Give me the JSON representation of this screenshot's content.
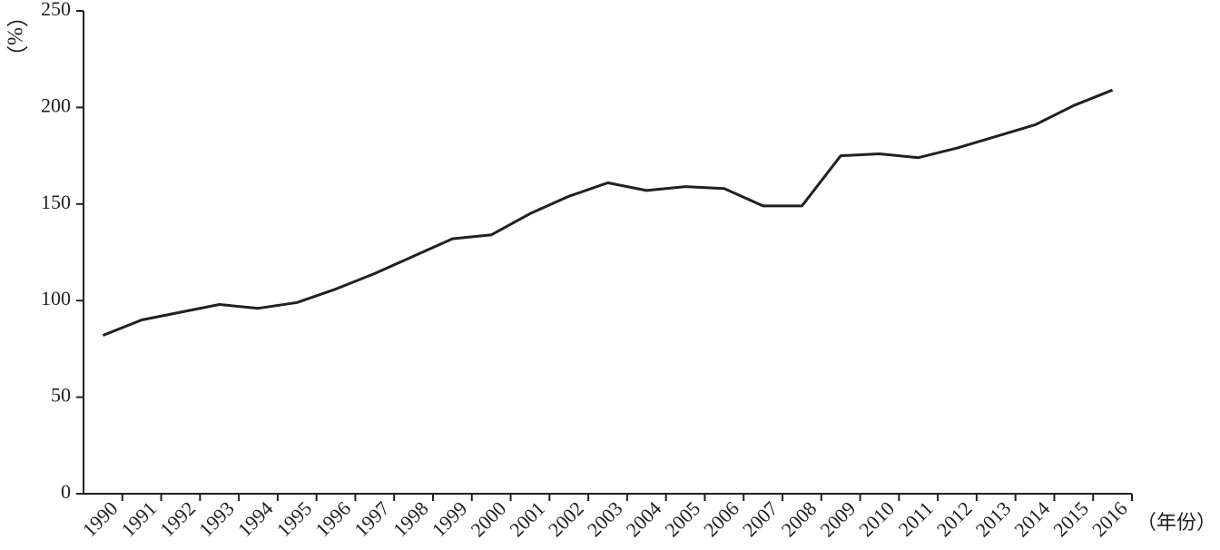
{
  "chart_data": {
    "type": "line",
    "y_label": "（%）",
    "x_label": "（年份）",
    "categories": [
      "1990",
      "1991",
      "1992",
      "1993",
      "1994",
      "1995",
      "1996",
      "1997",
      "1998",
      "1999",
      "2000",
      "2001",
      "2002",
      "2003",
      "2004",
      "2005",
      "2006",
      "2007",
      "2008",
      "2009",
      "2010",
      "2011",
      "2012",
      "2013",
      "2014",
      "2015",
      "2016"
    ],
    "series": [
      {
        "color": "#231f20",
        "values": [
          82,
          90,
          94,
          98,
          96,
          99,
          106,
          114,
          123,
          132,
          134,
          145,
          154,
          161,
          157,
          159,
          158,
          149,
          149,
          175,
          176,
          174,
          179,
          185,
          191,
          201,
          209
        ]
      }
    ],
    "ylim": [
      0,
      250
    ],
    "yticks": [
      0,
      50,
      100,
      150,
      200,
      250
    ],
    "grid": false
  }
}
